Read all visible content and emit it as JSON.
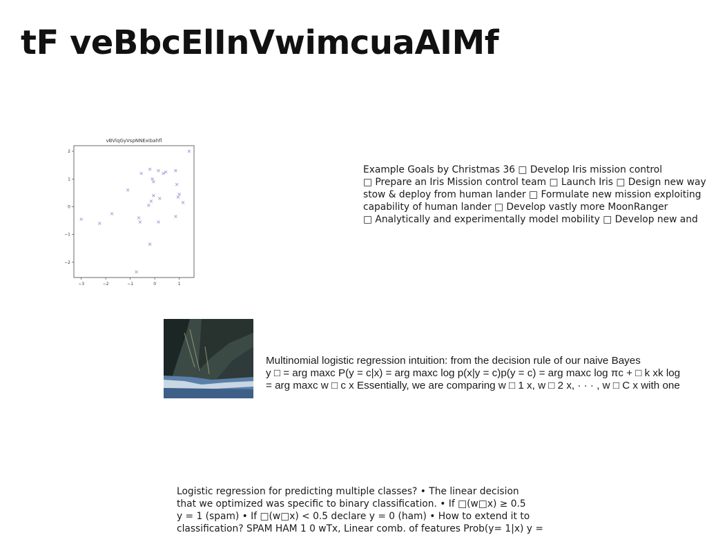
{
  "page": {
    "title": "tF veBbcElInVwimcuaAIMf"
  },
  "chart_data": {
    "type": "scatter",
    "title": "vBVlqGyVspNNExibahfl",
    "xlabel": "",
    "ylabel": "",
    "xlim": [
      -3.3,
      1.6
    ],
    "ylim": [
      -2.55,
      2.2
    ],
    "xticks": [
      -3,
      -2,
      -1,
      0,
      1
    ],
    "yticks": [
      2,
      1,
      0,
      -1,
      -2
    ],
    "grid": false,
    "marker": "x",
    "color": "#a89ad6",
    "series": [
      {
        "points": [
          [
            -3.0,
            -0.45
          ],
          [
            -2.25,
            -0.6
          ],
          [
            -1.75,
            -0.25
          ],
          [
            -1.1,
            0.6
          ],
          [
            -0.65,
            -0.4
          ],
          [
            -0.6,
            -0.55
          ],
          [
            -0.55,
            1.2
          ],
          [
            -0.2,
            1.35
          ],
          [
            -0.1,
            1.0
          ],
          [
            -0.05,
            0.9
          ],
          [
            0.15,
            1.3
          ],
          [
            0.35,
            1.2
          ],
          [
            0.45,
            1.25
          ],
          [
            0.85,
            1.3
          ],
          [
            0.9,
            0.8
          ],
          [
            1.4,
            2.0
          ],
          [
            -0.15,
            0.2
          ],
          [
            -0.05,
            0.4
          ],
          [
            -0.25,
            0.05
          ],
          [
            0.2,
            0.3
          ],
          [
            1.0,
            0.45
          ],
          [
            1.15,
            0.15
          ],
          [
            0.95,
            0.35
          ],
          [
            0.85,
            -0.35
          ],
          [
            0.15,
            -0.55
          ],
          [
            -0.2,
            -1.35
          ],
          [
            -0.75,
            -2.35
          ]
        ]
      }
    ]
  },
  "blocks": {
    "goals": {
      "lines": [
        "Example Goals by Christmas 36 □ Develop Iris mission control",
        "□ Prepare an Iris Mission control team □ Launch Iris □ Design new way",
        "stow & deploy from human lander □ Formulate new mission exploiting",
        "capability of human lander □ Develop vastly more MoonRanger",
        "□ Analytically and experimentally model mobility □ Develop new and"
      ]
    },
    "mlr": {
      "lines": [
        "Multinomial logistic regression intuition: from the decision rule of our naive Bayes",
        "y □ = arg maxc P(y = c|x) = arg maxc log p(x|y = c)p(y = c) = arg maxc log πc + □ k xk log",
        "= arg maxc w □ c x Essentially, we are comparing w □ 1 x, w □ 2 x, · · · , w □ C x with one"
      ]
    },
    "lr": {
      "lines": [
        "Logistic regression for predicting multiple classes? • The linear decision",
        "that we optimized was specific to binary classification. • If □(w□x) ≥ 0.5",
        "y = 1 (spam) • If □(w□x) < 0.5 declare y = 0 (ham) • How to extend it to",
        "classification? SPAM HAM 1 0 wTx, Linear comb. of features Prob(y= 1|x) y ="
      ]
    }
  }
}
